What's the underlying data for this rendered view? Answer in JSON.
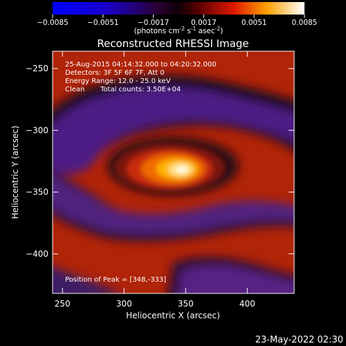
{
  "colorbar": {
    "ticks": [
      "-0.0085",
      "-0.0051",
      "-0.0017",
      "0.0017",
      "0.0051",
      "0.0085"
    ],
    "units_prefix": "(photons cm",
    "units_exp1": "-2",
    "units_mid": " s",
    "units_exp2": "-1",
    "units_mid2": " asec",
    "units_exp3": "-2",
    "units_suffix": ")",
    "range": [
      -0.0085,
      0.0085
    ]
  },
  "title": "Reconstructed RHESSI Image",
  "annotations": {
    "time": "25-Aug-2015 04:14:32.000 to 04:20:32.000",
    "detectors": "Detectors: 3F 5F 6F 7F, Att 0",
    "energy": "Energy Range: 12.0 - 25.0 keV",
    "clean": "Clean",
    "counts": "Total counts: 3.50E+04",
    "peak": "Position of Peak = [348,-333]"
  },
  "footer": {
    "date": "23-May-2022 02:30"
  },
  "chart_data": {
    "type": "heatmap",
    "title": "Reconstructed RHESSI Image",
    "xlabel": "Heliocentric X (arcsec)",
    "ylabel": "Heliocentric Y (arcsec)",
    "xlim": [
      242,
      438
    ],
    "ylim": [
      -432,
      -236
    ],
    "x_ticks": [
      250,
      300,
      350,
      400
    ],
    "y_ticks": [
      -250,
      -300,
      -350,
      -400
    ],
    "peak": [
      348,
      -333
    ],
    "colormap": "blue-purple-red-orange-yellow-white"
  }
}
